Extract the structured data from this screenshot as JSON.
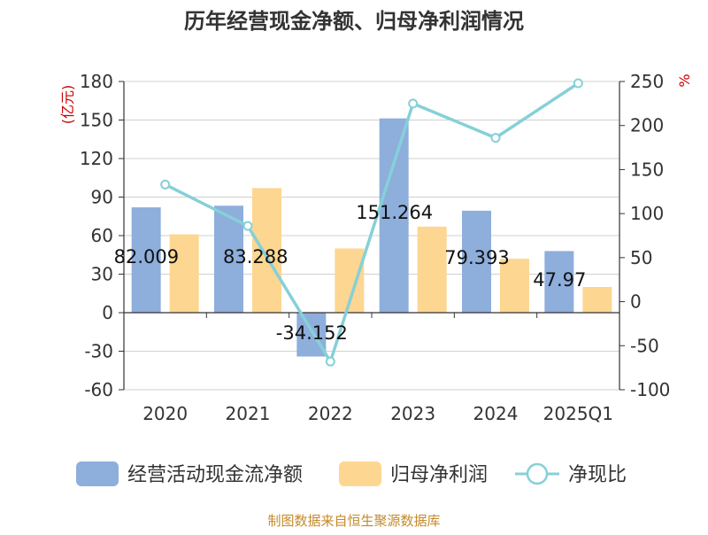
{
  "chart_data": {
    "type": "bar",
    "title": "历年经营现金净额、归母净利润情况",
    "y_left_unit": "(亿元)",
    "y_right_unit": "%",
    "categories": [
      "2020",
      "2021",
      "2022",
      "2023",
      "2024",
      "2025Q1"
    ],
    "y_left_ticks": [
      "180",
      "150",
      "120",
      "90",
      "60",
      "30",
      "0",
      "-30",
      "-60"
    ],
    "y_right_ticks": [
      "250",
      "200",
      "150",
      "100",
      "50",
      "0",
      "-50",
      "-100"
    ],
    "y_left_range": [
      -60,
      180
    ],
    "y_right_range": [
      -100,
      250
    ],
    "series": [
      {
        "name": "经营活动现金流净额",
        "axis": "left",
        "kind": "bar",
        "values": [
          82.009,
          83.288,
          -34.152,
          151.264,
          79.393,
          47.97
        ],
        "labels": [
          "82.009",
          "83.288",
          "-34.152",
          "151.264",
          "79.393",
          "47.97"
        ]
      },
      {
        "name": "归母净利润",
        "axis": "left",
        "kind": "bar",
        "values": [
          61,
          97,
          50,
          67,
          42,
          20
        ]
      },
      {
        "name": "净现比",
        "axis": "right",
        "kind": "line",
        "values": [
          133,
          86,
          -68,
          225,
          186,
          248
        ]
      }
    ],
    "colors": {
      "cash": "#8eaedc",
      "profit": "#fdd691",
      "ratio": "#86d0d8",
      "unit": "#cc0000",
      "source": "#c48a2a"
    },
    "legend_position": "bottom",
    "grid": true
  },
  "source_text": "制图数据来自恒生聚源数据库"
}
